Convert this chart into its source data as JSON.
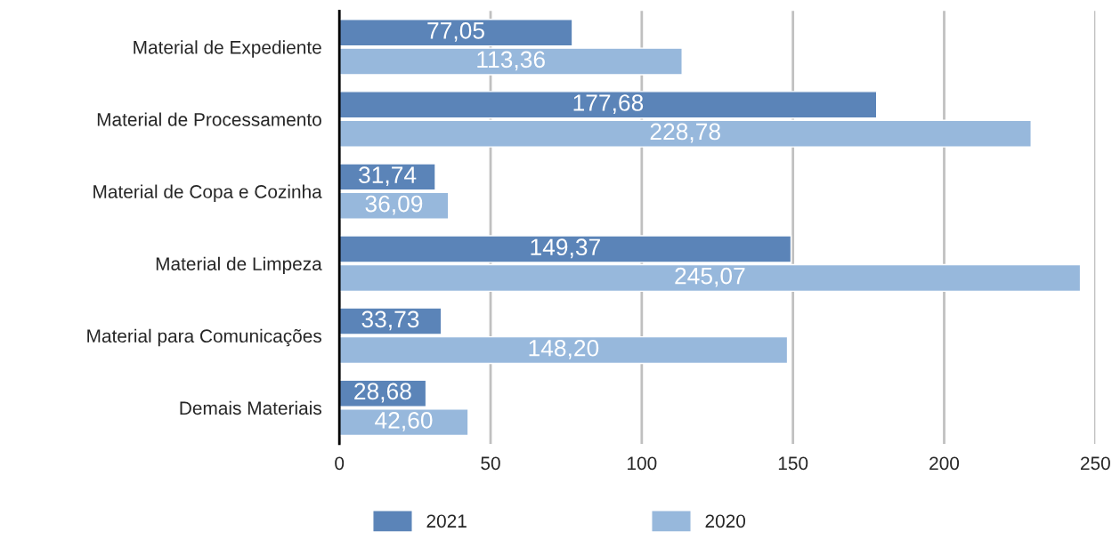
{
  "chart_data": {
    "type": "bar",
    "orientation": "horizontal",
    "categories": [
      "Material de Expediente",
      "Material de Processamento",
      "Material de Copa e Cozinha",
      "Material de Limpeza",
      "Material para Comunicações",
      "Demais Materiais"
    ],
    "series": [
      {
        "name": "2021",
        "color": "#5b84b8",
        "values": [
          77.05,
          177.68,
          31.74,
          149.37,
          33.73,
          28.68
        ],
        "value_labels": [
          "77,05",
          "177,68",
          "31,74",
          "149,37",
          "33,73",
          "28,68"
        ]
      },
      {
        "name": "2020",
        "color": "#97b8dc",
        "values": [
          113.36,
          228.78,
          36.09,
          245.07,
          148.2,
          42.6
        ],
        "value_labels": [
          "113,36",
          "228,78",
          "36,09",
          "245,07",
          "148,20",
          "42,60"
        ]
      }
    ],
    "xlim": [
      0,
      250
    ],
    "xticks": [
      0,
      50,
      100,
      150,
      200,
      250
    ],
    "grid": "x",
    "legend": "bottom"
  }
}
